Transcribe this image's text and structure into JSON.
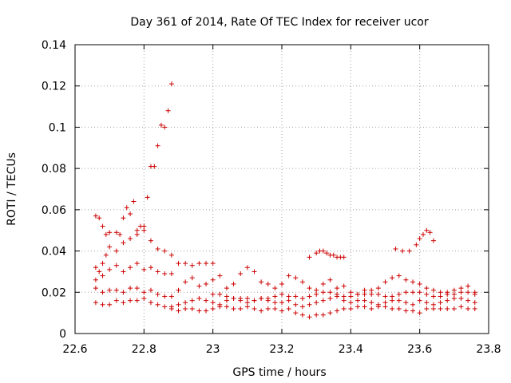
{
  "chart_data": {
    "type": "scatter",
    "title": "Day 361 of 2014, Rate Of TEC Index for receiver ucor",
    "xlabel": "GPS time / hours",
    "ylabel": "ROTI / TECUs",
    "xlim": [
      22.6,
      23.8
    ],
    "ylim": [
      0,
      0.14
    ],
    "xticks": [
      "22.6",
      "22.8",
      "23",
      "23.2",
      "23.4",
      "23.6",
      "23.8"
    ],
    "yticks": [
      "0",
      "0.02",
      "0.04",
      "0.06",
      "0.08",
      "0.1",
      "0.12",
      "0.14"
    ],
    "grid": true,
    "marker": "+",
    "color": "#cc0000",
    "series": [
      {
        "name": "ROTI",
        "x": [
          22.66,
          22.67,
          22.68,
          22.69,
          22.7,
          22.72,
          22.73,
          22.74,
          22.75,
          22.76,
          22.77,
          22.78,
          22.79,
          22.8,
          22.81,
          22.82,
          22.83,
          22.84,
          22.85,
          22.86,
          22.87,
          22.88,
          22.66,
          22.67,
          22.68,
          22.69,
          22.7,
          22.72,
          22.74,
          22.76,
          22.78,
          22.8,
          22.82,
          22.84,
          22.86,
          22.88,
          22.66,
          22.68,
          22.7,
          22.72,
          22.74,
          22.76,
          22.78,
          22.8,
          22.82,
          22.84,
          22.86,
          22.88,
          22.9,
          22.92,
          22.94,
          22.96,
          22.98,
          23.0,
          22.66,
          22.68,
          22.7,
          22.72,
          22.74,
          22.76,
          22.78,
          22.8,
          22.82,
          22.84,
          22.86,
          22.88,
          22.9,
          22.92,
          22.94,
          22.96,
          22.98,
          23.0,
          23.02,
          23.04,
          23.06,
          23.08,
          23.1,
          23.12,
          23.14,
          23.16,
          23.18,
          23.2,
          23.22,
          23.24,
          23.26,
          23.28,
          23.3,
          23.32,
          23.34,
          23.36,
          23.38,
          23.4,
          23.42,
          23.44,
          23.46,
          23.48,
          23.5,
          23.52,
          23.54,
          23.56,
          23.58,
          23.6,
          23.62,
          23.64,
          23.66,
          23.68,
          23.7,
          23.72,
          23.74,
          23.76,
          22.66,
          22.68,
          22.7,
          22.72,
          22.74,
          22.76,
          22.78,
          22.8,
          22.82,
          22.84,
          22.86,
          22.88,
          22.9,
          22.92,
          22.94,
          22.96,
          22.98,
          23.0,
          23.02,
          23.04,
          23.06,
          23.08,
          23.1,
          23.12,
          23.14,
          23.16,
          23.18,
          23.2,
          23.22,
          23.24,
          23.26,
          23.28,
          23.3,
          23.32,
          23.34,
          23.36,
          23.38,
          23.4,
          23.42,
          23.44,
          23.46,
          23.48,
          23.5,
          23.52,
          23.54,
          23.56,
          23.58,
          23.6,
          23.62,
          23.64,
          23.66,
          23.68,
          23.7,
          23.72,
          23.74,
          23.76,
          22.88,
          22.9,
          22.92,
          22.94,
          22.96,
          22.98,
          23.0,
          23.02,
          23.04,
          23.06,
          23.08,
          23.1,
          23.12,
          23.14,
          23.16,
          23.18,
          23.2,
          23.22,
          23.24,
          23.26,
          23.28,
          23.3,
          23.32,
          23.34,
          23.36,
          23.38,
          23.4,
          23.42,
          23.44,
          23.46,
          23.48,
          23.5,
          23.52,
          23.54,
          23.56,
          23.58,
          23.6,
          23.62,
          23.64,
          23.66,
          23.68,
          23.7,
          23.72,
          23.74,
          23.76,
          23.28,
          23.3,
          23.31,
          23.32,
          23.33,
          23.34,
          23.35,
          23.36,
          23.37,
          23.38,
          23.53,
          23.55,
          23.57,
          23.59,
          23.6,
          23.61,
          23.62,
          23.63,
          23.64,
          23.0,
          23.02,
          23.04,
          23.06,
          23.08,
          23.1,
          23.12,
          23.14,
          23.16,
          23.18,
          23.2,
          23.22,
          23.24,
          23.26,
          23.28,
          23.3,
          23.32,
          23.34,
          23.36,
          23.38,
          23.4,
          23.42,
          23.44,
          23.46,
          23.48,
          23.5,
          23.52,
          23.54,
          23.56,
          23.58,
          23.6,
          23.62,
          23.64,
          23.66,
          23.68,
          23.7,
          23.72,
          23.74,
          23.76
        ],
        "y": [
          0.057,
          0.056,
          0.052,
          0.048,
          0.049,
          0.049,
          0.048,
          0.056,
          0.061,
          0.058,
          0.064,
          0.05,
          0.052,
          0.052,
          0.066,
          0.081,
          0.081,
          0.091,
          0.101,
          0.1,
          0.108,
          0.121,
          0.026,
          0.03,
          0.034,
          0.038,
          0.042,
          0.04,
          0.044,
          0.046,
          0.048,
          0.05,
          0.045,
          0.041,
          0.04,
          0.038,
          0.032,
          0.028,
          0.031,
          0.033,
          0.03,
          0.032,
          0.034,
          0.031,
          0.032,
          0.03,
          0.029,
          0.029,
          0.034,
          0.034,
          0.033,
          0.034,
          0.034,
          0.034,
          0.022,
          0.02,
          0.021,
          0.021,
          0.02,
          0.022,
          0.022,
          0.02,
          0.021,
          0.019,
          0.018,
          0.018,
          0.021,
          0.025,
          0.027,
          0.023,
          0.024,
          0.026,
          0.028,
          0.022,
          0.024,
          0.029,
          0.032,
          0.03,
          0.025,
          0.024,
          0.022,
          0.024,
          0.028,
          0.027,
          0.025,
          0.022,
          0.021,
          0.024,
          0.026,
          0.022,
          0.023,
          0.02,
          0.019,
          0.021,
          0.021,
          0.022,
          0.025,
          0.027,
          0.028,
          0.026,
          0.025,
          0.024,
          0.022,
          0.021,
          0.02,
          0.02,
          0.021,
          0.022,
          0.023,
          0.02,
          0.015,
          0.014,
          0.014,
          0.016,
          0.015,
          0.016,
          0.016,
          0.017,
          0.015,
          0.014,
          0.013,
          0.013,
          0.014,
          0.015,
          0.016,
          0.017,
          0.016,
          0.015,
          0.014,
          0.016,
          0.017,
          0.016,
          0.015,
          0.016,
          0.017,
          0.016,
          0.015,
          0.015,
          0.016,
          0.014,
          0.013,
          0.014,
          0.015,
          0.016,
          0.017,
          0.018,
          0.016,
          0.015,
          0.016,
          0.016,
          0.015,
          0.014,
          0.015,
          0.016,
          0.016,
          0.015,
          0.014,
          0.016,
          0.015,
          0.014,
          0.015,
          0.016,
          0.017,
          0.017,
          0.016,
          0.015,
          0.012,
          0.011,
          0.012,
          0.012,
          0.011,
          0.011,
          0.012,
          0.013,
          0.013,
          0.012,
          0.012,
          0.013,
          0.012,
          0.011,
          0.012,
          0.012,
          0.011,
          0.012,
          0.01,
          0.009,
          0.008,
          0.009,
          0.009,
          0.01,
          0.011,
          0.012,
          0.012,
          0.013,
          0.013,
          0.012,
          0.013,
          0.013,
          0.012,
          0.012,
          0.011,
          0.011,
          0.01,
          0.012,
          0.012,
          0.012,
          0.012,
          0.012,
          0.013,
          0.012,
          0.012,
          0.037,
          0.039,
          0.04,
          0.04,
          0.039,
          0.038,
          0.038,
          0.037,
          0.037,
          0.037,
          0.041,
          0.04,
          0.04,
          0.043,
          0.046,
          0.048,
          0.05,
          0.049,
          0.045,
          0.019,
          0.019,
          0.018,
          0.017,
          0.017,
          0.017,
          0.016,
          0.017,
          0.017,
          0.018,
          0.019,
          0.018,
          0.018,
          0.017,
          0.018,
          0.019,
          0.02,
          0.02,
          0.019,
          0.018,
          0.018,
          0.019,
          0.019,
          0.019,
          0.019,
          0.018,
          0.018,
          0.019,
          0.02,
          0.02,
          0.02,
          0.019,
          0.018,
          0.018,
          0.019,
          0.019,
          0.02,
          0.02,
          0.019
        ]
      }
    ]
  }
}
